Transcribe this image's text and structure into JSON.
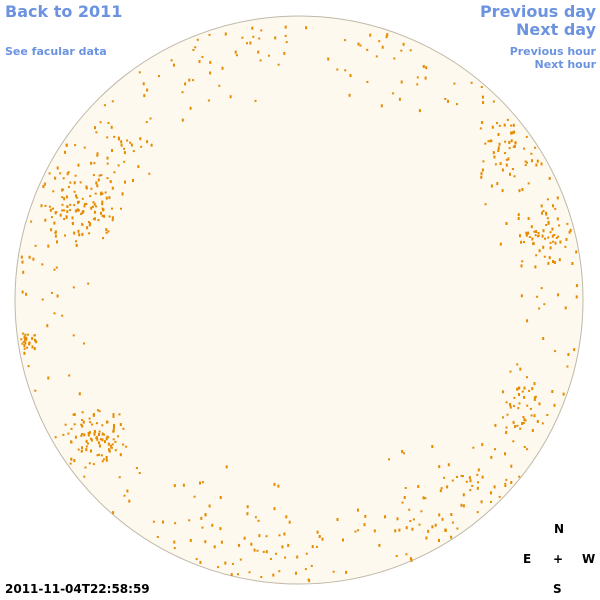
{
  "links": {
    "back": "Back to 2011",
    "facular": "See facular data",
    "previous_day": "Previous day",
    "next_day": "Next day",
    "previous_hour": "Previous hour",
    "next_hour": "Next hour"
  },
  "timestamp": "2011-11-04T22:58:59",
  "compass": {
    "north": "N",
    "east": "E",
    "center": "+",
    "west": "W",
    "south": "S"
  }
}
